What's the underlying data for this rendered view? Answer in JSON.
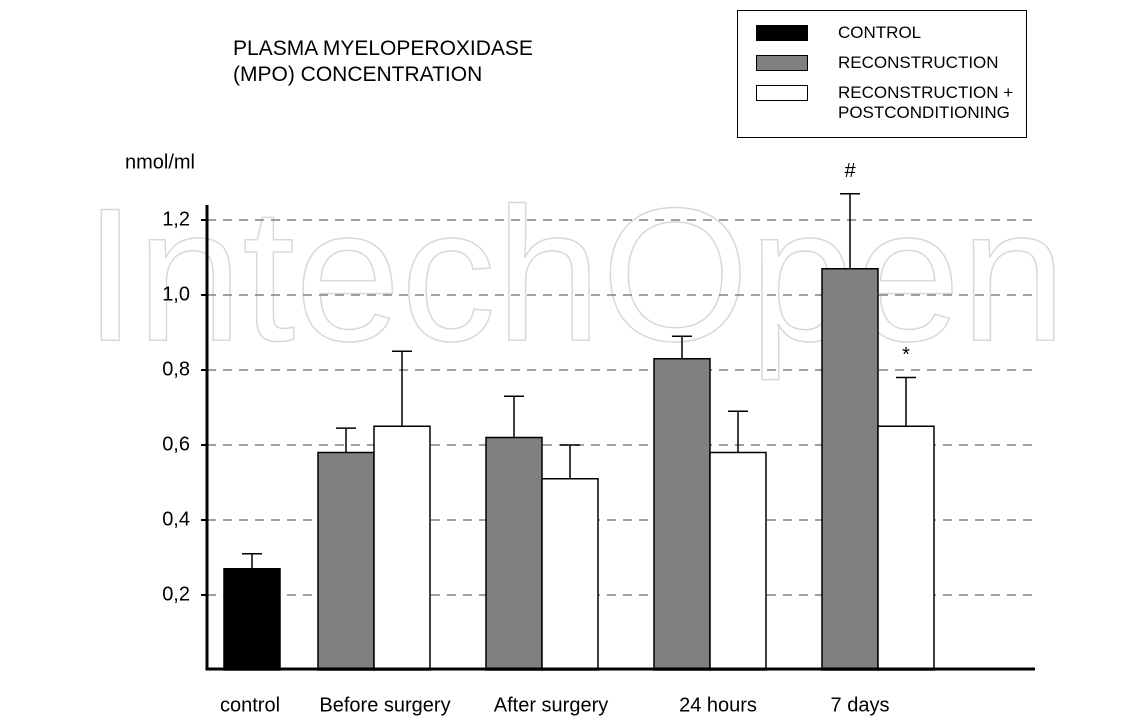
{
  "chart_data": {
    "type": "bar",
    "title": "PLASMA MYELOPEROXIDASE (MPO) CONCENTRATION",
    "y_label": "nmol/ml",
    "watermark": "IntechOpen",
    "categories": [
      "control",
      "Before surgery",
      "After surgery",
      "24 hours",
      "7 days"
    ],
    "series": [
      {
        "name": "CONTROL",
        "color": "#000000",
        "values": [
          0.27,
          null,
          null,
          null,
          null
        ],
        "errors": [
          0.04,
          null,
          null,
          null,
          null
        ]
      },
      {
        "name": "RECONSTRUCTION",
        "color": "#808080",
        "values": [
          null,
          0.58,
          0.62,
          0.83,
          1.07
        ],
        "errors": [
          null,
          0.065,
          0.11,
          0.06,
          0.2
        ]
      },
      {
        "name": "RECONSTRUCTION + POSTCONDITIONING",
        "color": "#ffffff",
        "values": [
          null,
          0.65,
          0.51,
          0.58,
          0.65
        ],
        "errors": [
          null,
          0.2,
          0.09,
          0.11,
          0.13
        ]
      }
    ],
    "annotations": [
      {
        "text": "#",
        "series": "RECONSTRUCTION",
        "category": "7 days"
      },
      {
        "text": "*",
        "series": "RECONSTRUCTION + POSTCONDITIONING",
        "category": "7 days"
      }
    ],
    "ylim": [
      0,
      1.24
    ],
    "yticks": [
      {
        "value": 0.2,
        "label": "0,2"
      },
      {
        "value": 0.4,
        "label": "0,4"
      },
      {
        "value": 0.6,
        "label": "0,6"
      },
      {
        "value": 0.8,
        "label": "0,8"
      },
      {
        "value": 1.0,
        "label": "1,0"
      },
      {
        "value": 1.2,
        "label": "1,2"
      }
    ],
    "grid": true,
    "legend": "top-right"
  }
}
